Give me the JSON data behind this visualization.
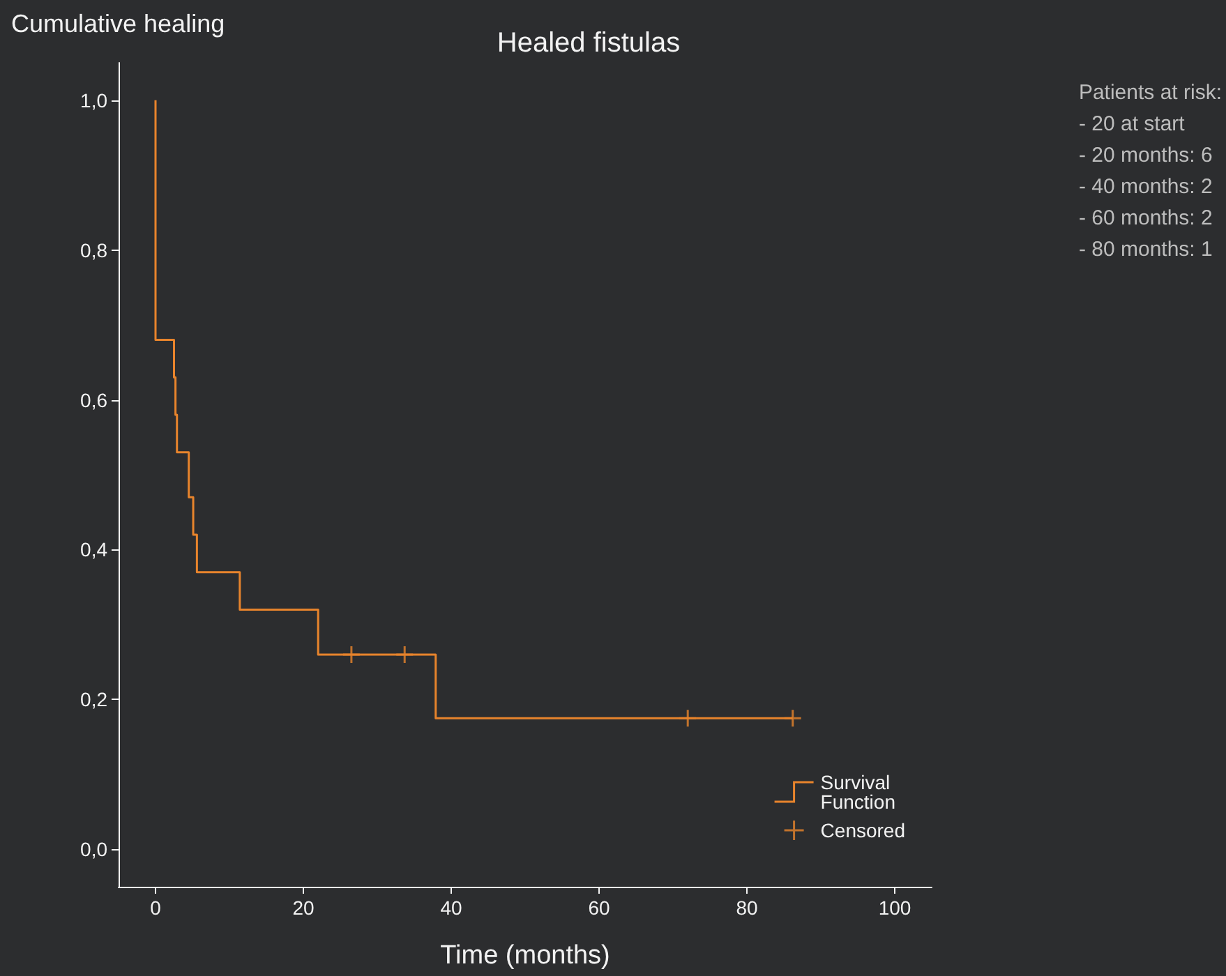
{
  "chart_data": {
    "type": "step",
    "title": "Healed fistulas",
    "xlabel": "Time (months)",
    "ylabel": "Cumulative healing",
    "annotations": [
      "Patients at risk:\n- 20 at start\n- 20 months: 6\n- 40 months: 2\n- 60 months: 2\n- 80 months: 1"
    ],
    "series": [
      {
        "name": "Survival Function",
        "color": "#e8842c",
        "marker": "none",
        "x": [
          0,
          0,
          2.5,
          2.7,
          2.9,
          4.5,
          5.1,
          5.6,
          11.4,
          22,
          37.9,
          86.2
        ],
        "values": [
          1.0,
          0.68,
          0.63,
          0.58,
          0.53,
          0.47,
          0.42,
          0.37,
          0.32,
          0.26,
          0.175,
          0.175
        ]
      },
      {
        "name": "Censored",
        "type": "scatter",
        "color": "#e8842c",
        "marker": "cross",
        "x": [
          26.5,
          33.7,
          72,
          86.2
        ],
        "values": [
          0.26,
          0.26,
          0.175,
          0.175
        ]
      }
    ],
    "xlim": [
      -5,
      105
    ],
    "xticks": [
      0,
      20,
      40,
      60,
      80,
      100
    ],
    "ylim": [
      -0.05,
      1.05
    ],
    "yticks": [
      {
        "value": 0,
        "label": "0,0"
      },
      {
        "value": 0.2,
        "label": "0,2"
      },
      {
        "value": 0.4,
        "label": "0,4"
      },
      {
        "value": 0.6,
        "label": "0,6"
      },
      {
        "value": 0.8,
        "label": "0,8"
      },
      {
        "value": 1.0,
        "label": "1,0"
      }
    ],
    "grid": false,
    "legend": "bottom right"
  }
}
